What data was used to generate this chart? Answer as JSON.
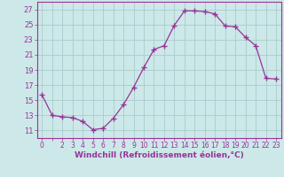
{
  "x": [
    0,
    1,
    2,
    3,
    4,
    5,
    6,
    7,
    8,
    9,
    10,
    11,
    12,
    13,
    14,
    15,
    16,
    17,
    18,
    19,
    20,
    21,
    22,
    23
  ],
  "y": [
    15.7,
    13.0,
    12.8,
    12.7,
    12.2,
    11.1,
    11.3,
    12.6,
    14.4,
    16.7,
    19.3,
    21.7,
    22.2,
    24.9,
    26.8,
    26.8,
    26.7,
    26.4,
    24.8,
    24.7,
    23.3,
    22.2,
    17.9,
    17.8
  ],
  "line_color": "#993399",
  "marker": "+",
  "marker_size": 4,
  "xlim": [
    -0.5,
    23.5
  ],
  "ylim": [
    10.0,
    28.0
  ],
  "yticks": [
    11,
    13,
    15,
    17,
    19,
    21,
    23,
    25,
    27
  ],
  "xlabel": "Windchill (Refroidissement éolien,°C)",
  "background_color": "#cce8e8",
  "grid_color": "#aacccc",
  "title": ""
}
